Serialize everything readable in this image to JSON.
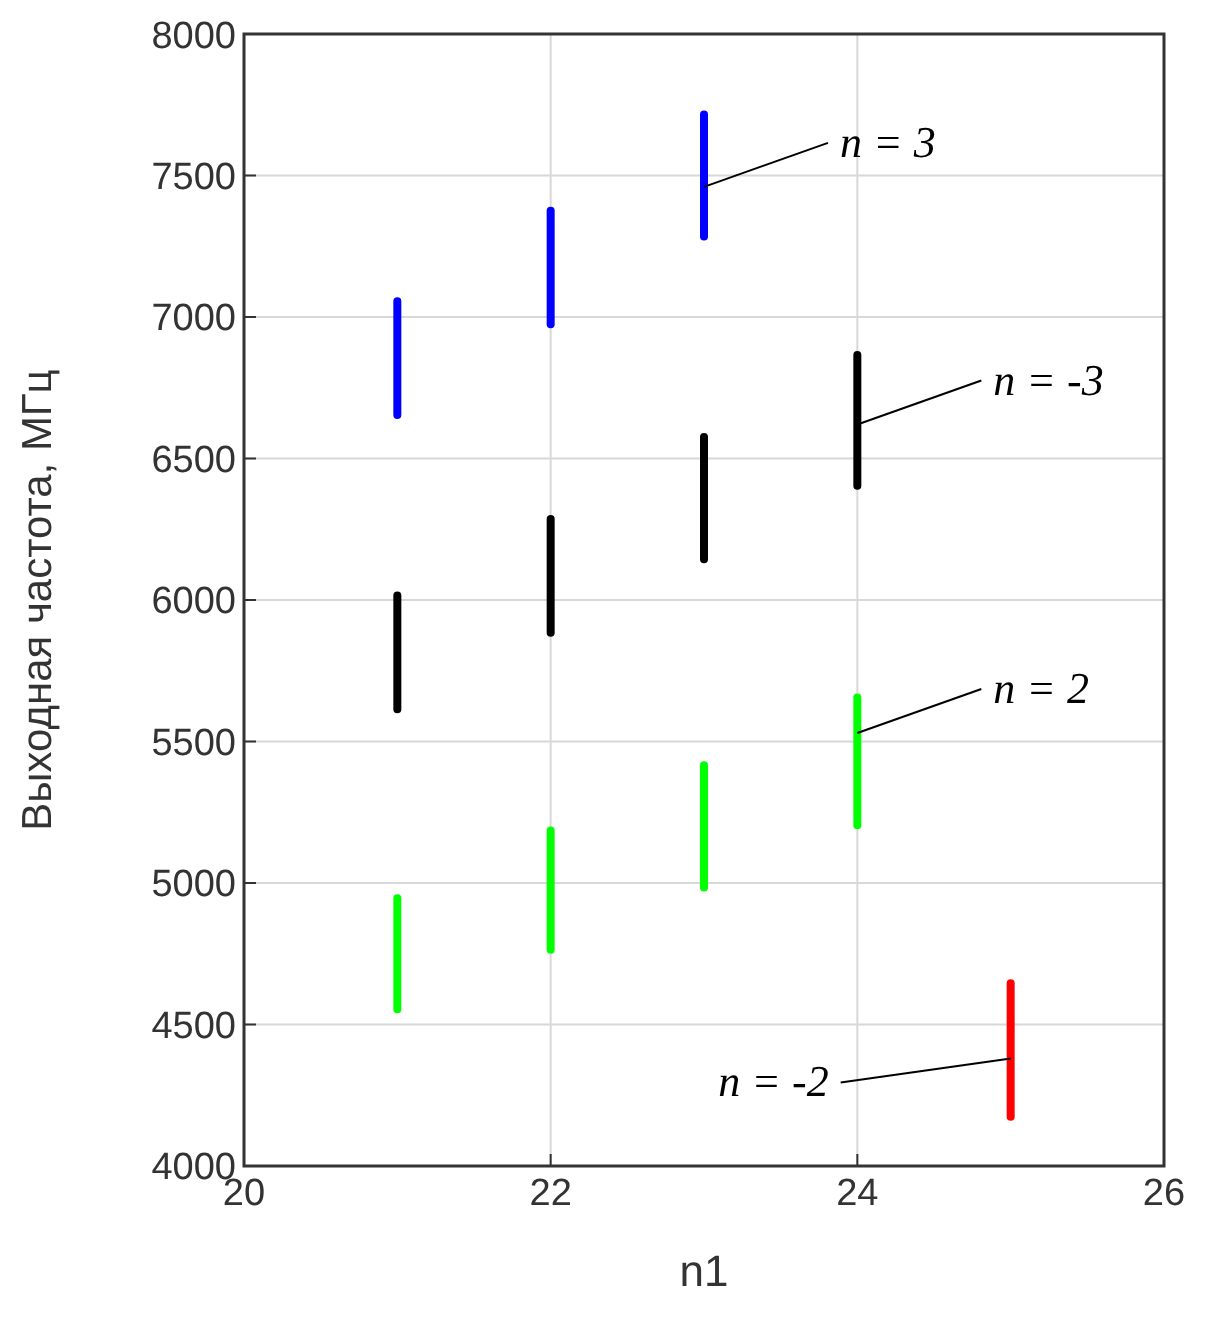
{
  "chart_data": {
    "type": "bar",
    "xlabel": "n1",
    "ylabel": "Выходная частота, МГц",
    "xlim": [
      20,
      26
    ],
    "xticks": [
      20,
      22,
      24,
      26
    ],
    "ylim": [
      4000,
      8000
    ],
    "yticks": [
      4000,
      4500,
      5000,
      5500,
      6000,
      6500,
      7000,
      7500,
      8000
    ],
    "grid": true,
    "annotations": [
      {
        "text": "n = 3",
        "x": 23,
        "y": 7460
      },
      {
        "text": "n = -3",
        "x": 24,
        "y": 6620
      },
      {
        "text": "n = 2",
        "x": 24,
        "y": 5530
      },
      {
        "text": "n = -2",
        "x": 25,
        "y": 4380
      }
    ],
    "series": [
      {
        "color": "#0000ff",
        "x": [
          21,
          22,
          23
        ],
        "base": [
          6640,
          6960,
          7270
        ],
        "values": [
          430,
          430,
          460
        ]
      },
      {
        "color": "#000000",
        "x": [
          21,
          22,
          23,
          24
        ],
        "base": [
          5600,
          5870,
          6130,
          6390
        ],
        "values": [
          430,
          430,
          460,
          490
        ]
      },
      {
        "color": "#00ff00",
        "x": [
          21,
          22,
          23,
          24
        ],
        "base": [
          4540,
          4750,
          4970,
          5190
        ],
        "values": [
          420,
          450,
          460,
          480
        ]
      },
      {
        "color": "#ff0000",
        "x": [
          25
        ],
        "base": [
          4160
        ],
        "values": [
          500
        ]
      }
    ]
  }
}
